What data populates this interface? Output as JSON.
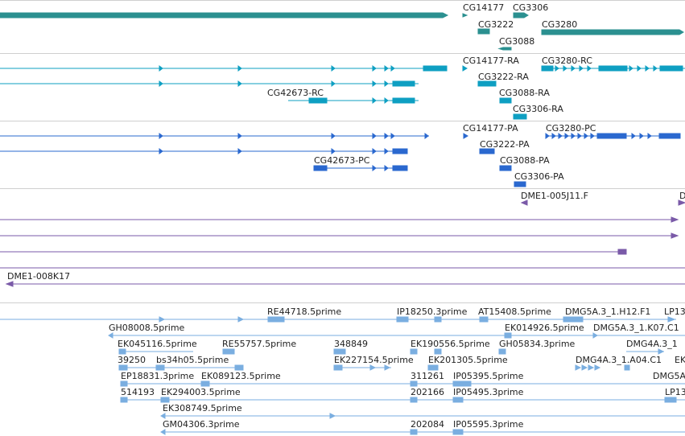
{
  "colors": {
    "gene": "#2b9090",
    "rna_a": "#0e9fc2",
    "rna_b": "#2a68cf",
    "clone": "#7a5aa8",
    "est": "#7aaee0",
    "separator": "#cfcfcf"
  },
  "tracks": {
    "genes": {
      "labels": {
        "cg14177": "CG14177",
        "cg3306": "CG3306",
        "cg3222": "CG3222",
        "cg3280": "CG3280",
        "cg3088": "CG3088"
      }
    },
    "rna_ra": {
      "labels": {
        "cg14177_ra": "CG14177-RA",
        "cg3280_rc": "CG3280-RC",
        "cg3222_ra": "CG3222-RA",
        "cg42673_rc": "CG42673-RC",
        "cg3088_ra": "CG3088-RA",
        "cg3306_ra": "CG3306-RA"
      }
    },
    "protein_pa": {
      "labels": {
        "cg14177_pa": "CG14177-PA",
        "cg3280_pc": "CG3280-PC",
        "cg3222_pa": "CG3222-PA",
        "cg42673_pc": "CG42673-PC",
        "cg3088_pa": "CG3088-PA",
        "cg3306_pa": "CG3306-PA"
      }
    },
    "clones": {
      "labels": {
        "dme1_005j11": "DME1-005J11.F",
        "dme1_edge": "D",
        "dme1_008k17": "DME1-008K17"
      }
    },
    "ests": {
      "labels": {
        "re44718": "RE44718.5prime",
        "ip18250": "IP18250.3prime",
        "at15408": "AT15408.5prime",
        "dmg5a3_h12": "DMG5A.3_1.H12.F1",
        "lp13_a": "LP13",
        "gh08008": "GH08008.5prime",
        "ek014926": "EK014926.5prime",
        "dmg5a3_k07": "DMG5A.3_1.K07.C1",
        "ek045116": "EK045116.5prime",
        "re55757": "RE55757.5prime",
        "n348849": "348849",
        "ek190556": "EK190556.5prime",
        "gh05834": "GH05834.3prime",
        "dmg4a3_1": "DMG4A.3_1",
        "n39250": "39250",
        "bs34h05": "bs34h05.5prime",
        "ek227154": "EK227154.5prime",
        "ek201305": "EK201305.5prime",
        "dmg4a3_a04": "DMG4A.3_1.A04.C1",
        "ek_edge": "EK",
        "ep18831": "EP18831.3prime",
        "ek089123": "EK089123.5prime",
        "n311261": "311261",
        "ip05395": "IP05395.5prime",
        "dmg5a_edge": "DMG5A",
        "n514193": "514193",
        "ek294003": "EK294003.5prime",
        "n202166": "202166",
        "ip05495": "IP05495.3prime",
        "lp13_b": "LP13",
        "ek308749": "EK308749.5prime",
        "gm04306": "GM04306.3prime",
        "n202084": "202084",
        "ip05595": "IP05595.3prime"
      }
    }
  }
}
